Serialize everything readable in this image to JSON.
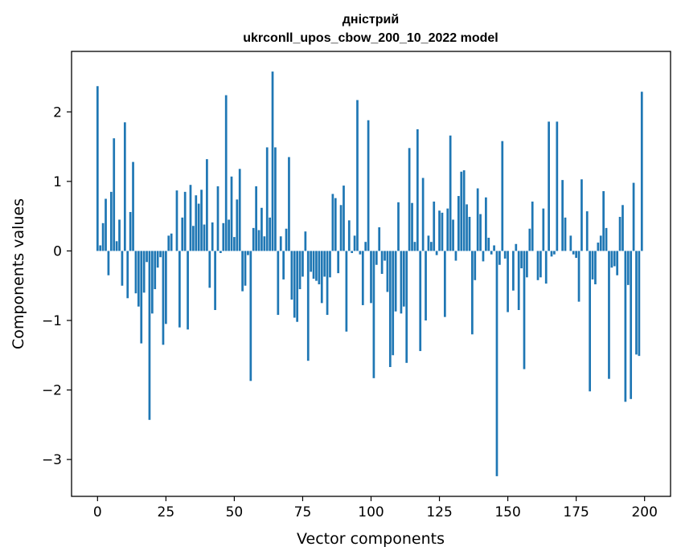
{
  "chart_data": {
    "type": "bar",
    "title": "дністрий",
    "subtitle": "ukrconll_upos_cbow_200_10_2022 model",
    "xlabel": "Vector components",
    "ylabel": "Components values",
    "xlim": [
      -9.5,
      209.5
    ],
    "ylim": [
      -3.53,
      2.87
    ],
    "xticks": [
      0,
      25,
      50,
      75,
      100,
      125,
      150,
      175,
      200
    ],
    "yticks": [
      -3,
      -2,
      -1,
      0,
      1,
      2
    ],
    "grid": false,
    "legend": "none",
    "bar_color": "#1f77b4",
    "values": [
      2.37,
      0.08,
      0.4,
      0.75,
      -0.35,
      0.85,
      1.62,
      0.14,
      0.45,
      -0.5,
      1.85,
      -0.68,
      0.56,
      1.28,
      -0.61,
      -0.8,
      -1.33,
      -0.6,
      -0.16,
      -2.43,
      -0.9,
      -0.55,
      -0.24,
      -0.09,
      -1.35,
      -1.05,
      0.22,
      0.25,
      0.0,
      0.87,
      -1.1,
      0.48,
      0.85,
      -1.13,
      0.95,
      0.36,
      0.8,
      0.68,
      0.88,
      0.38,
      1.32,
      -0.53,
      0.41,
      -0.85,
      0.93,
      -0.03,
      0.4,
      2.24,
      0.45,
      1.07,
      0.2,
      0.74,
      1.18,
      -0.58,
      -0.5,
      -0.06,
      -1.87,
      0.33,
      0.93,
      0.3,
      0.62,
      0.21,
      1.49,
      0.48,
      2.58,
      1.49,
      -0.92,
      0.21,
      -0.41,
      0.32,
      1.35,
      -0.7,
      -0.96,
      -1.02,
      -0.55,
      -0.37,
      0.28,
      -1.58,
      -0.3,
      -0.4,
      -0.43,
      -0.48,
      -0.75,
      -0.37,
      -0.92,
      -0.38,
      0.82,
      0.76,
      -0.32,
      0.66,
      0.94,
      -1.16,
      0.44,
      -0.03,
      0.22,
      2.17,
      -0.05,
      -0.78,
      0.13,
      1.88,
      -0.75,
      -1.83,
      -0.2,
      0.34,
      -0.33,
      -0.14,
      -0.59,
      -1.67,
      -1.5,
      -0.87,
      0.7,
      -0.9,
      -0.8,
      -1.61,
      1.48,
      0.69,
      0.13,
      1.75,
      -1.44,
      1.05,
      -1.0,
      0.22,
      0.13,
      0.71,
      -0.06,
      0.58,
      0.55,
      -0.95,
      0.61,
      1.66,
      0.45,
      -0.14,
      0.79,
      1.14,
      1.16,
      0.67,
      0.49,
      -1.2,
      -0.42,
      0.9,
      0.53,
      -0.15,
      0.77,
      0.19,
      -0.05,
      0.08,
      -3.24,
      -0.2,
      1.58,
      -0.11,
      -0.88,
      0.0,
      -0.57,
      0.1,
      -0.85,
      -0.25,
      -1.7,
      -0.38,
      0.32,
      0.71,
      0.0,
      -0.42,
      -0.38,
      0.61,
      -0.47,
      1.86,
      -0.08,
      -0.05,
      1.86,
      0.0,
      1.02,
      0.48,
      0.0,
      0.22,
      -0.05,
      -0.1,
      -0.73,
      1.03,
      0.0,
      0.57,
      -2.02,
      -0.41,
      -0.48,
      0.12,
      0.22,
      0.86,
      0.33,
      -1.84,
      -0.24,
      -0.22,
      -0.35,
      0.49,
      0.66,
      -2.17,
      -0.49,
      -2.13,
      0.98,
      -1.49,
      -1.51,
      2.29
    ]
  }
}
